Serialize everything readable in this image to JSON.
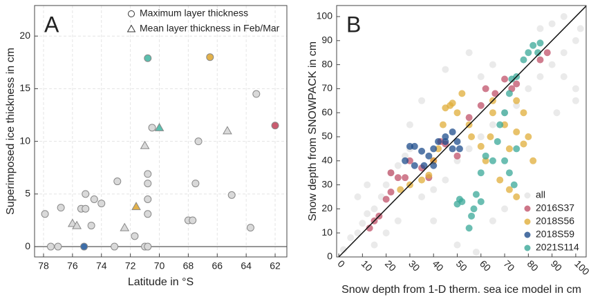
{
  "chart_data": [
    {
      "type": "scatter",
      "panel_label": "A",
      "x_label": "Latitude in °S",
      "y_label": "Superimposed ice thickness in cm",
      "xlim": [
        78.62,
        61.19
      ],
      "ylim": [
        -0.98,
        22.9
      ],
      "xticks": [
        78,
        76,
        74,
        72,
        70,
        68,
        66,
        64,
        62
      ],
      "yticks": [
        0,
        5,
        10,
        15,
        20
      ],
      "grid": true,
      "hline": 0,
      "legend": "top-right",
      "series": [
        {
          "name": "Maximum layer thickness",
          "marker": "circle",
          "x": [
            77.9,
            77.5,
            77.0,
            76.8,
            75.2,
            75.1,
            75.4,
            75.1,
            74.5,
            74.0,
            74.7,
            73.1,
            72.9,
            71.7,
            71.0,
            70.8,
            70.8,
            70.8,
            70.8,
            70.8,
            70.5,
            70.8,
            66.5,
            67.3,
            67.5,
            68.0,
            67.7,
            65.0,
            63.7,
            63.3,
            62.0
          ],
          "values": [
            3.1,
            0,
            0,
            3.7,
            0,
            5.0,
            3.6,
            3.6,
            4.5,
            4.1,
            2.0,
            0,
            6.2,
            1.0,
            0,
            0,
            6.9,
            6.0,
            4.5,
            3.1,
            11.3,
            17.9,
            18.0,
            10.0,
            6.0,
            2.5,
            2.5,
            4.9,
            1.8,
            14.5,
            11.5
          ],
          "colors": [
            "#d9d9d9",
            "#d9d9d9",
            "#d9d9d9",
            "#d9d9d9",
            "#3d6da8",
            "#d9d9d9",
            "#d9d9d9",
            "#d9d9d9",
            "#d9d9d9",
            "#d9d9d9",
            "#d9d9d9",
            "#d9d9d9",
            "#d9d9d9",
            "#d9d9d9",
            "#d9d9d9",
            "#d9d9d9",
            "#d9d9d9",
            "#d9d9d9",
            "#d9d9d9",
            "#d9d9d9",
            "#d9d9d9",
            "#5bbfae",
            "#e2b14a",
            "#d9d9d9",
            "#d9d9d9",
            "#d9d9d9",
            "#d9d9d9",
            "#d9d9d9",
            "#d9d9d9",
            "#d9d9d9",
            "#c95b6f"
          ]
        },
        {
          "name": "Mean layer thickness in Feb/Mar",
          "marker": "triangle",
          "x": [
            76.0,
            75.7,
            72.4,
            71.6,
            71.0,
            70.0,
            65.3
          ],
          "values": [
            2.2,
            2.0,
            1.8,
            3.8,
            9.6,
            11.3,
            11.0
          ],
          "colors": [
            "#d9d9d9",
            "#d9d9d9",
            "#d9d9d9",
            "#e2b14a",
            "#d9d9d9",
            "#5bbfae",
            "#d9d9d9"
          ]
        }
      ]
    },
    {
      "type": "scatter",
      "panel_label": "B",
      "x_label": "Snow depth from 1-D therm. sea ice model in cm",
      "y_label": "Snow depth from SNOWPACK in cm",
      "xlim": [
        -0.9,
        104.4
      ],
      "ylim": [
        0,
        104.6
      ],
      "xticks": [
        0,
        10,
        20,
        30,
        40,
        50,
        60,
        70,
        80,
        90,
        100
      ],
      "yticks": [
        0,
        10,
        20,
        30,
        40,
        50,
        60,
        70,
        80,
        90,
        100
      ],
      "grid": false,
      "diagonal": true,
      "legend": "bottom-right",
      "series": [
        {
          "name": "all",
          "color": "#e3e3e3",
          "x": [
            2,
            5,
            8,
            10,
            12,
            15,
            18,
            20,
            22,
            25,
            28,
            30,
            15,
            20,
            25,
            35,
            40,
            45,
            50,
            55,
            60,
            65,
            70,
            75,
            80,
            85,
            90,
            95,
            100,
            102,
            60,
            65,
            85,
            90,
            95,
            92,
            100,
            55,
            45,
            35,
            30,
            40,
            8,
            12,
            50,
            58,
            65,
            70,
            95,
            100
          ],
          "values": [
            3,
            8,
            10,
            14,
            18,
            20,
            25,
            30,
            35,
            38,
            42,
            45,
            5,
            10,
            15,
            25,
            28,
            32,
            40,
            45,
            50,
            55,
            60,
            63,
            70,
            75,
            80,
            85,
            90,
            95,
            75,
            80,
            95,
            97,
            100,
            60,
            70,
            85,
            78,
            65,
            55,
            15,
            25,
            30,
            5,
            2,
            15,
            20,
            75,
            65
          ]
        },
        {
          "name": "2016S37",
          "color": "#c0526a",
          "x": [
            13,
            15,
            17,
            20,
            22,
            22,
            25,
            28,
            30,
            35,
            38,
            40,
            43,
            45,
            50,
            55,
            60,
            62,
            66,
            70,
            73,
            75,
            85,
            88
          ],
          "values": [
            12,
            15,
            17,
            24,
            27,
            35,
            33,
            33,
            40,
            37,
            33,
            40,
            48,
            47,
            42,
            58,
            63,
            70,
            68,
            74,
            70,
            72,
            82,
            85
          ]
        },
        {
          "name": "2018S56",
          "color": "#e0ae3a",
          "x": [
            26,
            30,
            35,
            38,
            40,
            42,
            44,
            45,
            47,
            48,
            50,
            52,
            55,
            56,
            60,
            62,
            64,
            65,
            65,
            70,
            72,
            75,
            75,
            78,
            82,
            78,
            80,
            68,
            72,
            75
          ],
          "values": [
            28,
            30,
            32,
            34,
            40,
            45,
            55,
            62,
            63,
            64,
            60,
            68,
            55,
            50,
            46,
            40,
            50,
            60,
            65,
            55,
            45,
            52,
            65,
            60,
            40,
            47,
            50,
            32,
            28,
            25
          ]
        },
        {
          "name": "2018S59",
          "color": "#1f4e8c",
          "x": [
            30,
            32,
            35,
            38,
            40,
            42,
            45,
            48,
            50,
            28,
            32,
            36,
            40,
            45,
            48,
            51
          ],
          "values": [
            46,
            46,
            44,
            42,
            45,
            48,
            50,
            52,
            48,
            40,
            38,
            38,
            38,
            48,
            45,
            45
          ]
        },
        {
          "name": "2021S114",
          "color": "#3aa898",
          "x": [
            50,
            51,
            52,
            55,
            56,
            57,
            58,
            60,
            60,
            62,
            65,
            67,
            68,
            70,
            70,
            72,
            74,
            75,
            72,
            75,
            73,
            78,
            80,
            82,
            84,
            85
          ],
          "values": [
            22,
            24,
            23,
            12,
            17,
            20,
            26,
            23,
            35,
            42,
            40,
            48,
            55,
            60,
            40,
            35,
            30,
            45,
            68,
            75,
            74,
            82,
            85,
            88,
            85,
            89
          ]
        }
      ]
    }
  ]
}
